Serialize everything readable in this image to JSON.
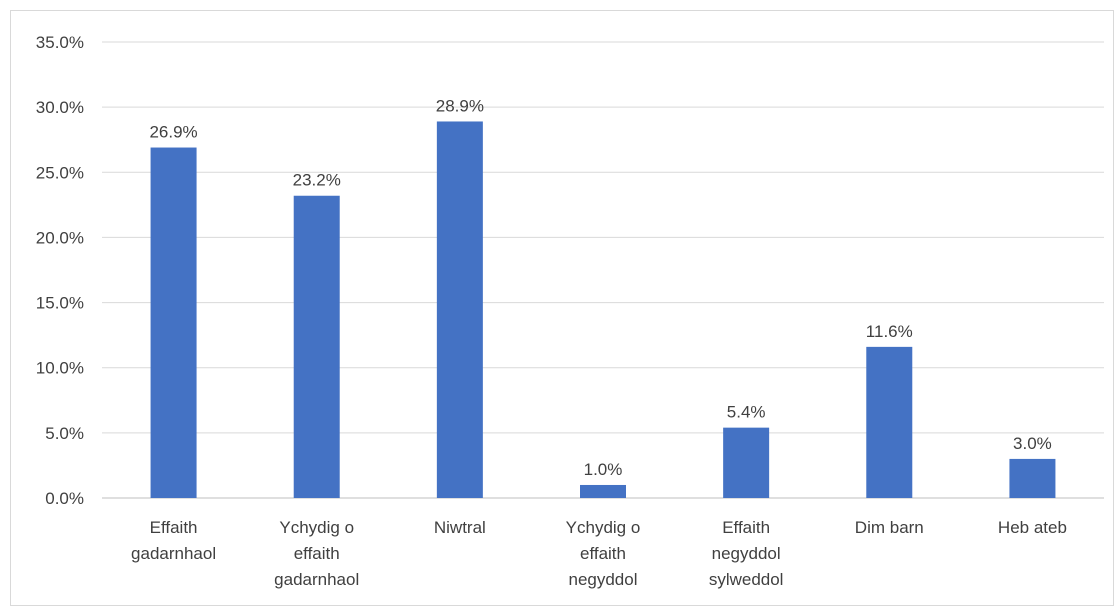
{
  "chart_data": {
    "type": "bar",
    "title": "",
    "xlabel": "",
    "ylabel": "",
    "categories": [
      [
        "Effaith",
        "gadarnhaol"
      ],
      [
        "Ychydig o",
        "effaith",
        "gadarnhaol"
      ],
      [
        "Niwtral"
      ],
      [
        "Ychydig o",
        "effaith",
        "negyddol"
      ],
      [
        "Effaith",
        "negyddol",
        "sylweddol"
      ],
      [
        "Dim barn"
      ],
      [
        "Heb ateb"
      ]
    ],
    "values": [
      26.9,
      23.2,
      28.9,
      1.0,
      5.4,
      11.6,
      3.0
    ],
    "data_labels": [
      "26.9%",
      "23.2%",
      "28.9%",
      "1.0%",
      "5.4%",
      "11.6%",
      "3.0%"
    ],
    "ylim": [
      0,
      35
    ],
    "yticks": [
      0,
      5,
      10,
      15,
      20,
      25,
      30,
      35
    ],
    "ytick_labels": [
      "0.0%",
      "5.0%",
      "10.0%",
      "15.0%",
      "20.0%",
      "25.0%",
      "30.0%",
      "35.0%"
    ],
    "grid": true,
    "legend": "none",
    "bar_color": "#4472c4"
  }
}
